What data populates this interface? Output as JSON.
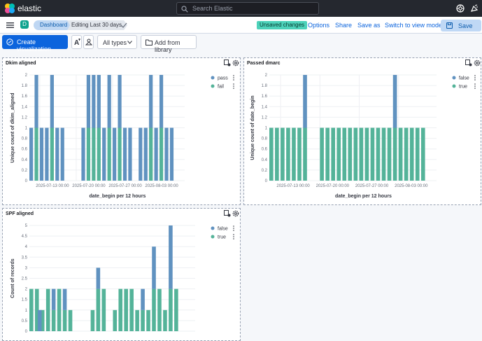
{
  "header": {
    "brand": "elastic",
    "search_placeholder": "Search Elastic"
  },
  "subheader": {
    "avatar_initial": "D",
    "breadcrumbs": [
      "Dashboard",
      "Editing Last 30 days"
    ],
    "unsaved_badge": "Unsaved changes",
    "actions": [
      "Options",
      "Share",
      "Save as",
      "Switch to view mode"
    ],
    "save_label": "Save"
  },
  "toolbar": {
    "create_label": "Create visualization",
    "types_label": "All types",
    "library_label": "Add from library"
  },
  "colors": {
    "blue": "#6092c0",
    "green": "#54b399"
  },
  "chart_data": [
    {
      "type": "bar",
      "title": "Dkim aligned",
      "xlabel": "date_begin per 12 hours",
      "ylabel": "Unique count of dkim_aligned",
      "ylim": [
        0,
        2
      ],
      "yticks": [
        "0",
        "0.2",
        "0.4",
        "0.6",
        "0.8",
        "1",
        "1.2",
        "1.4",
        "1.6",
        "1.8",
        "2"
      ],
      "xticks": [
        "2025-07-13 00:00",
        "2025-07-20 00:00",
        "2025-07-27 00:00",
        "2025-08-03 00:00"
      ],
      "xticks_at": [
        4,
        18,
        32,
        46
      ],
      "stacked": true,
      "legend": "top-right",
      "series": [
        {
          "name": "pass",
          "color": "#6092c0",
          "values": [
            1,
            0,
            1,
            0,
            1,
            0,
            1,
            0,
            1,
            0,
            1,
            0,
            1,
            0,
            0,
            0,
            0,
            0,
            0,
            0,
            1,
            0,
            1,
            0,
            1,
            0,
            1,
            0,
            1,
            0,
            1,
            0,
            1,
            0,
            1,
            0,
            1,
            0,
            1,
            0,
            0,
            0,
            1,
            0,
            1,
            0,
            1,
            0,
            1,
            0,
            1,
            0,
            1,
            0,
            1,
            0,
            0
          ]
        },
        {
          "name": "fail",
          "color": "#54b399",
          "values": [
            0,
            0,
            1,
            0,
            0,
            0,
            0,
            0,
            1,
            0,
            0,
            0,
            0,
            0,
            0,
            0,
            0,
            0,
            0,
            0,
            0,
            0,
            1,
            0,
            1,
            0,
            1,
            0,
            0,
            0,
            1,
            0,
            0,
            0,
            1,
            0,
            0,
            0,
            0,
            0,
            0,
            0,
            0,
            0,
            0,
            0,
            1,
            0,
            0,
            0,
            1,
            0,
            0,
            0,
            0,
            0,
            0
          ]
        }
      ]
    },
    {
      "type": "bar",
      "title": "Passed dmarc",
      "xlabel": "date_begin per 12 hours",
      "ylabel": "Unique count of date_begin",
      "ylim": [
        0,
        2
      ],
      "yticks": [
        "0",
        "0.2",
        "0.4",
        "0.6",
        "0.8",
        "1",
        "1.2",
        "1.4",
        "1.6",
        "1.8",
        "2"
      ],
      "xticks": [
        "2025-07-13 00:00",
        "2025-07-20 00:00",
        "2025-07-27 00:00",
        "2025-08-03 00:00"
      ],
      "xticks_at": [
        4,
        18,
        32,
        46
      ],
      "stacked": true,
      "legend": "top-right",
      "series": [
        {
          "name": "false",
          "color": "#6092c0",
          "values": [
            0,
            0,
            0,
            0,
            0,
            0,
            0,
            0,
            0,
            0,
            0,
            0,
            1,
            0,
            0,
            0,
            0,
            0,
            0,
            0,
            0,
            0,
            0,
            0,
            0,
            0,
            0,
            0,
            0,
            0,
            0,
            0,
            0,
            0,
            0,
            0,
            0,
            0,
            0,
            0,
            0,
            0,
            0,
            0,
            1,
            0,
            0,
            0,
            0,
            0,
            0,
            0,
            0,
            0,
            0,
            0,
            0
          ]
        },
        {
          "name": "true",
          "color": "#54b399",
          "values": [
            1,
            0,
            1,
            0,
            1,
            0,
            1,
            0,
            1,
            0,
            1,
            0,
            1,
            0,
            0,
            0,
            0,
            0,
            1,
            0,
            1,
            0,
            1,
            0,
            1,
            0,
            1,
            0,
            1,
            0,
            1,
            0,
            1,
            0,
            1,
            0,
            1,
            0,
            1,
            0,
            1,
            0,
            1,
            0,
            1,
            0,
            1,
            0,
            1,
            0,
            1,
            0,
            1,
            0,
            1,
            0,
            0
          ]
        }
      ]
    },
    {
      "type": "bar",
      "title": "SPF aligned",
      "xlabel": "",
      "ylabel": "Count of records",
      "ylim": [
        0,
        5
      ],
      "yticks": [
        "0",
        "0.5",
        "1",
        "1.5",
        "2",
        "2.5",
        "3",
        "3.5",
        "4",
        "4.5",
        "5"
      ],
      "xticks": [],
      "xticks_at": [],
      "stacked": true,
      "legend": "top-right",
      "series": [
        {
          "name": "false",
          "color": "#6092c0",
          "values": [
            0,
            0,
            0,
            1,
            0,
            0,
            0,
            0,
            1,
            0,
            0,
            0,
            1,
            0,
            0,
            0,
            0,
            0,
            0,
            0,
            0,
            0,
            0,
            0,
            1,
            0,
            0,
            0,
            0,
            0,
            0,
            0,
            0,
            0,
            0,
            0,
            0,
            0,
            0,
            0,
            1,
            0,
            0,
            0,
            2,
            0,
            0,
            0,
            0,
            0,
            3,
            0,
            0,
            0,
            0,
            0,
            0
          ]
        },
        {
          "name": "true",
          "color": "#54b399",
          "values": [
            2,
            0,
            2,
            0,
            1,
            0,
            2,
            0,
            1,
            0,
            2,
            0,
            1,
            0,
            1,
            0,
            0,
            0,
            0,
            0,
            0,
            0,
            1,
            0,
            2,
            0,
            2,
            0,
            0,
            0,
            1,
            0,
            2,
            0,
            2,
            0,
            2,
            0,
            1,
            0,
            1,
            0,
            1,
            0,
            2,
            0,
            2,
            0,
            1,
            0,
            2,
            0,
            2,
            0,
            0,
            0,
            0
          ]
        }
      ]
    }
  ]
}
